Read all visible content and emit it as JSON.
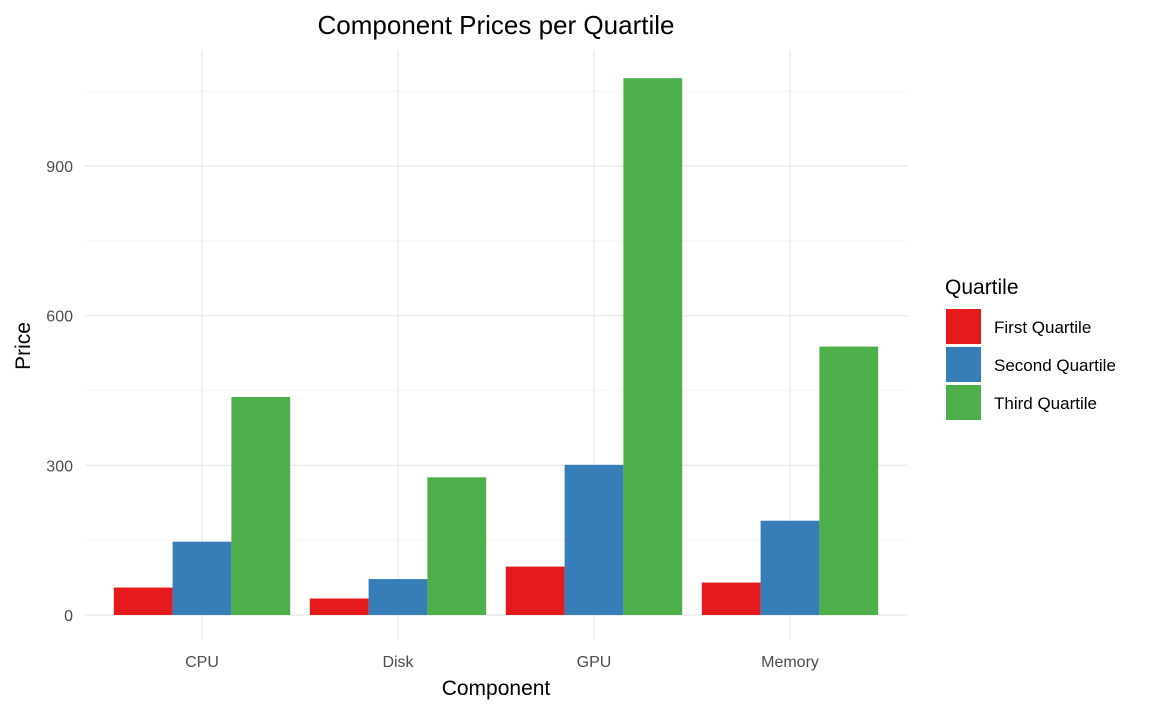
{
  "chart_data": {
    "type": "bar",
    "title": "Component Prices per Quartile",
    "xlabel": "Component",
    "ylabel": "Price",
    "categories": [
      "CPU",
      "Disk",
      "GPU",
      "Memory"
    ],
    "series": [
      {
        "name": "First Quartile",
        "values": [
          55,
          33,
          97,
          65
        ],
        "color": "#e41a1c"
      },
      {
        "name": "Second Quartile",
        "values": [
          147,
          72,
          301,
          189
        ],
        "color": "#377eb8"
      },
      {
        "name": "Third Quartile",
        "values": [
          437,
          276,
          1076,
          538
        ],
        "color": "#4daf4a"
      }
    ],
    "ylim": [
      0,
      1076
    ],
    "yticks": [
      0,
      300,
      600,
      900
    ],
    "grid": true,
    "legend": {
      "title": "Quartile",
      "position": "right"
    }
  }
}
